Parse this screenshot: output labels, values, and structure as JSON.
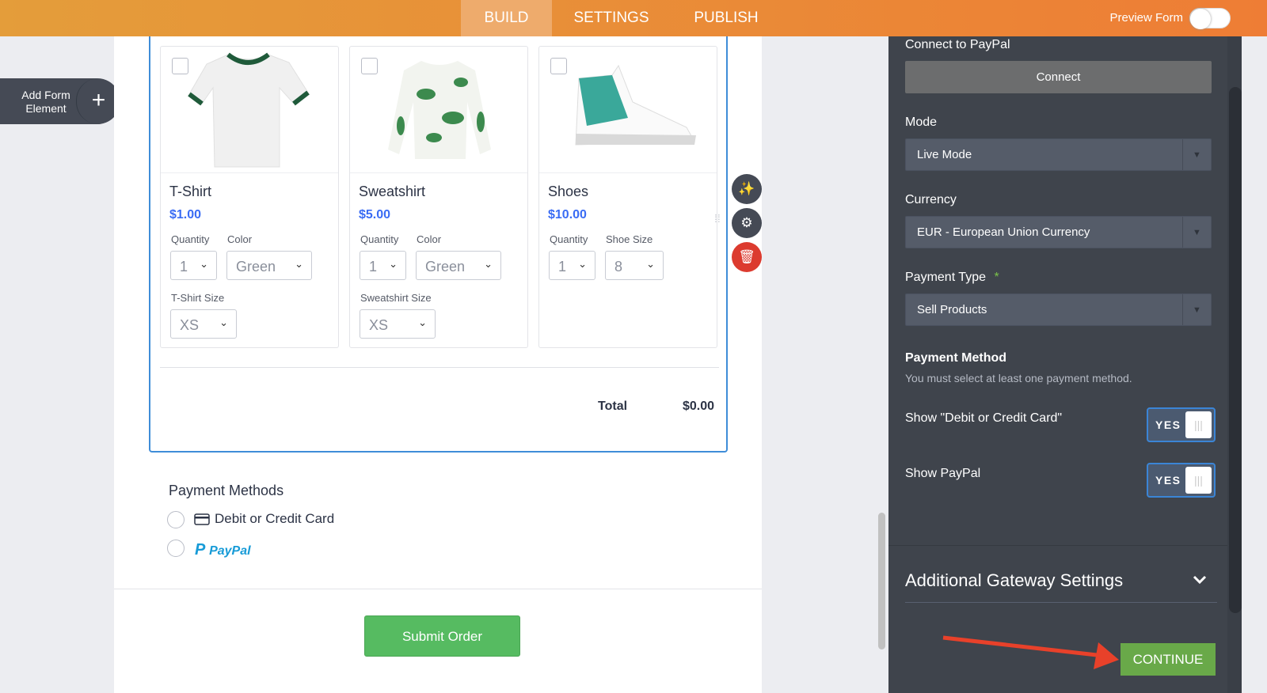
{
  "topbar": {
    "tabs": [
      {
        "label": "BUILD"
      },
      {
        "label": "SETTINGS"
      },
      {
        "label": "PUBLISH"
      }
    ],
    "preview_label": "Preview Form",
    "preview_on": false
  },
  "add_element": {
    "label": "Add Form Element",
    "icon": "plus-icon"
  },
  "products": [
    {
      "name": "T-Shirt",
      "price": "$1.00",
      "quantity_label": "Quantity",
      "quantity": "1",
      "option_label": "Color",
      "option": "Green",
      "size_label": "T-Shirt Size",
      "size": "XS"
    },
    {
      "name": "Sweatshirt",
      "price": "$5.00",
      "quantity_label": "Quantity",
      "quantity": "1",
      "option_label": "Color",
      "option": "Green",
      "size_label": "Sweatshirt Size",
      "size": "XS"
    },
    {
      "name": "Shoes",
      "price": "$10.00",
      "quantity_label": "Quantity",
      "quantity": "1",
      "option_label": "Shoe Size",
      "option": "8"
    }
  ],
  "total": {
    "label": "Total",
    "value": "$0.00"
  },
  "payment_methods": {
    "title": "Payment Methods",
    "options": [
      {
        "label": "Debit or Credit Card",
        "icon": "credit-card-icon"
      },
      {
        "label": "PayPal",
        "icon": "paypal-logo"
      }
    ]
  },
  "submit_label": "Submit Order",
  "panel": {
    "connect_label": "Connect to PayPal",
    "connect_button": "Connect",
    "mode_label": "Mode",
    "mode": "Live Mode",
    "currency_label": "Currency",
    "currency": "EUR - European Union Currency",
    "payment_type_label": "Payment Type",
    "required_mark": "*",
    "payment_type": "Sell Products",
    "payment_method_title": "Payment Method",
    "payment_method_hint": "You must select at least one payment method.",
    "show_card_label": "Show \"Debit or Credit Card\"",
    "show_card_value": "YES",
    "show_paypal_label": "Show PayPal",
    "show_paypal_value": "YES",
    "additional_title": "Additional Gateway Settings",
    "continue_label": "CONTINUE"
  },
  "colors": {
    "accent": "#ee7d35",
    "price": "#3a6cf4",
    "submit": "#56bb61",
    "continue": "#69a949",
    "panel": "#3f444c",
    "annotation_arrow": "#e8412a"
  }
}
